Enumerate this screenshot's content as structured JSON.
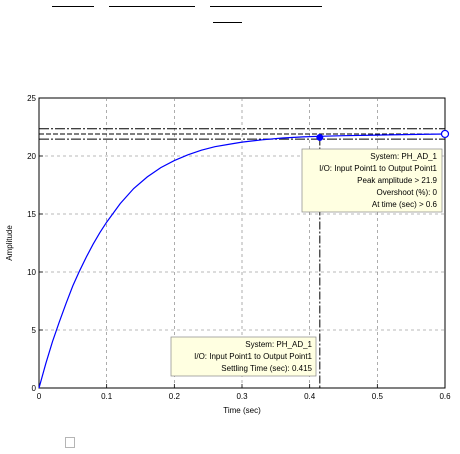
{
  "chart_data": {
    "type": "line",
    "title": "",
    "xlabel": "Time (sec)",
    "ylabel": "Amplitude",
    "xlim": [
      0,
      0.6
    ],
    "ylim": [
      0,
      25
    ],
    "xticks": [
      "0",
      "0.1",
      "0.2",
      "0.3",
      "0.4",
      "0.5",
      "0.6"
    ],
    "yticks": [
      "0",
      "5",
      "10",
      "15",
      "20",
      "25"
    ],
    "grid": true,
    "series": [
      {
        "color": "#0000ff",
        "x": [
          0,
          0.01,
          0.02,
          0.03,
          0.04,
          0.05,
          0.06,
          0.07,
          0.08,
          0.09,
          0.1,
          0.12,
          0.14,
          0.16,
          0.18,
          0.2,
          0.22,
          0.24,
          0.26,
          0.28,
          0.3,
          0.33,
          0.36,
          0.39,
          0.415,
          0.45,
          0.5,
          0.55,
          0.6
        ],
        "y": [
          0,
          2.1,
          4.0,
          5.7,
          7.3,
          8.8,
          10.1,
          11.3,
          12.4,
          13.4,
          14.3,
          15.9,
          17.2,
          18.2,
          19.0,
          19.6,
          20.1,
          20.5,
          20.8,
          21.0,
          21.2,
          21.4,
          21.55,
          21.65,
          21.7,
          21.75,
          21.8,
          21.85,
          21.9
        ]
      }
    ],
    "settling_band_lines": [
      22.35,
      21.9,
      21.45
    ],
    "settling_marker": {
      "x": 0.415,
      "y": 21.6
    },
    "peak_marker": {
      "x": 0.6,
      "y": 21.9
    },
    "annotations": [
      {
        "lines": [
          "System: PH_AD_1",
          "I/O: Input Point1 to Output Point1",
          "Peak amplitude > 21.9",
          "Overshoot (%): 0",
          "At time (sec) > 0.6"
        ]
      },
      {
        "lines": [
          "System: PH_AD_1",
          "I/O: Input Point1 to Output Point1",
          "Settling Time (sec): 0.415"
        ]
      }
    ]
  }
}
